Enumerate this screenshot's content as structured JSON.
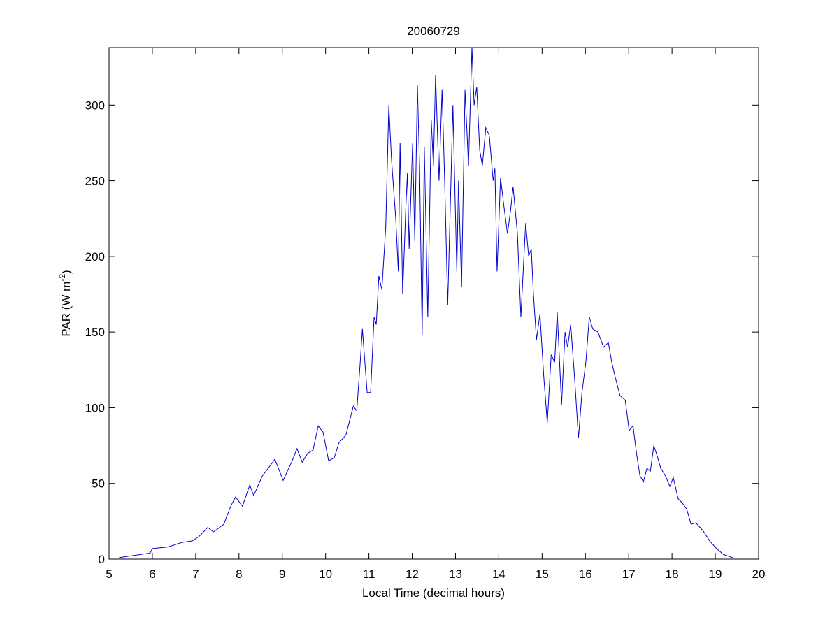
{
  "chart_data": {
    "type": "line",
    "title": "20060729",
    "xlabel": "Local Time (decimal hours)",
    "ylabel_parts": [
      "PAR (W m",
      "-2",
      ")"
    ],
    "color": "#0000cc",
    "xlim": [
      5,
      20
    ],
    "xticks": [
      5,
      6,
      7,
      8,
      9,
      10,
      11,
      12,
      13,
      14,
      15,
      16,
      17,
      18,
      19,
      20
    ],
    "ylim": [
      0,
      338
    ],
    "yticks": [
      0,
      50,
      100,
      150,
      200,
      250,
      300
    ],
    "grid": false,
    "x": [
      5.23,
      5.95,
      6.0,
      6.36,
      6.68,
      6.92,
      7.08,
      7.28,
      7.41,
      7.65,
      7.81,
      7.92,
      8.08,
      8.25,
      8.34,
      8.54,
      8.7,
      8.83,
      9.02,
      9.23,
      9.34,
      9.46,
      9.59,
      9.71,
      9.83,
      9.94,
      10.07,
      10.2,
      10.31,
      10.47,
      10.64,
      10.72,
      10.8,
      10.85,
      10.96,
      11.04,
      11.12,
      11.17,
      11.23,
      11.3,
      11.39,
      11.46,
      11.52,
      11.62,
      11.68,
      11.72,
      11.78,
      11.85,
      11.89,
      11.93,
      12.01,
      12.06,
      12.12,
      12.17,
      12.23,
      12.28,
      12.36,
      12.44,
      12.49,
      12.54,
      12.62,
      12.69,
      12.75,
      12.82,
      12.9,
      12.94,
      13.03,
      13.07,
      13.14,
      13.22,
      13.3,
      13.38,
      13.43,
      13.49,
      13.56,
      13.62,
      13.7,
      13.78,
      13.87,
      13.91,
      13.96,
      14.04,
      14.11,
      14.2,
      14.27,
      14.33,
      14.43,
      14.51,
      14.62,
      14.69,
      14.75,
      14.8,
      14.87,
      14.95,
      15.04,
      15.12,
      15.21,
      15.29,
      15.35,
      15.45,
      15.53,
      15.59,
      15.66,
      15.75,
      15.84,
      15.92,
      16.01,
      16.09,
      16.17,
      16.29,
      16.42,
      16.53,
      16.61,
      16.69,
      16.8,
      16.92,
      17.01,
      17.1,
      17.18,
      17.26,
      17.34,
      17.42,
      17.5,
      17.58,
      17.66,
      17.74,
      17.85,
      17.95,
      18.03,
      18.14,
      18.24,
      18.34,
      18.44,
      18.55,
      18.71,
      18.87,
      19.03,
      19.19,
      19.4
    ],
    "values": [
      1,
      4,
      7,
      8,
      11,
      12,
      15,
      21,
      18,
      23,
      35,
      41,
      35,
      49,
      42,
      55,
      61,
      66,
      52,
      65,
      73,
      64,
      70,
      72,
      88,
      84,
      65,
      67,
      77,
      82,
      101,
      98,
      130,
      152,
      110,
      110,
      160,
      155,
      187,
      178,
      220,
      300,
      265,
      225,
      190,
      275,
      175,
      230,
      255,
      205,
      275,
      210,
      313,
      260,
      148,
      272,
      160,
      290,
      260,
      320,
      250,
      310,
      250,
      168,
      255,
      300,
      190,
      250,
      180,
      310,
      260,
      338,
      300,
      312,
      270,
      260,
      285,
      280,
      250,
      258,
      190,
      252,
      235,
      215,
      230,
      246,
      215,
      160,
      222,
      200,
      205,
      175,
      145,
      162,
      120,
      90,
      135,
      130,
      163,
      102,
      150,
      140,
      155,
      120,
      80,
      110,
      130,
      160,
      152,
      150,
      140,
      143,
      130,
      120,
      108,
      105,
      85,
      88,
      70,
      55,
      51,
      60,
      58,
      75,
      68,
      60,
      55,
      48,
      54,
      40,
      37,
      33,
      23,
      24,
      19,
      12,
      7,
      3,
      1
    ]
  }
}
